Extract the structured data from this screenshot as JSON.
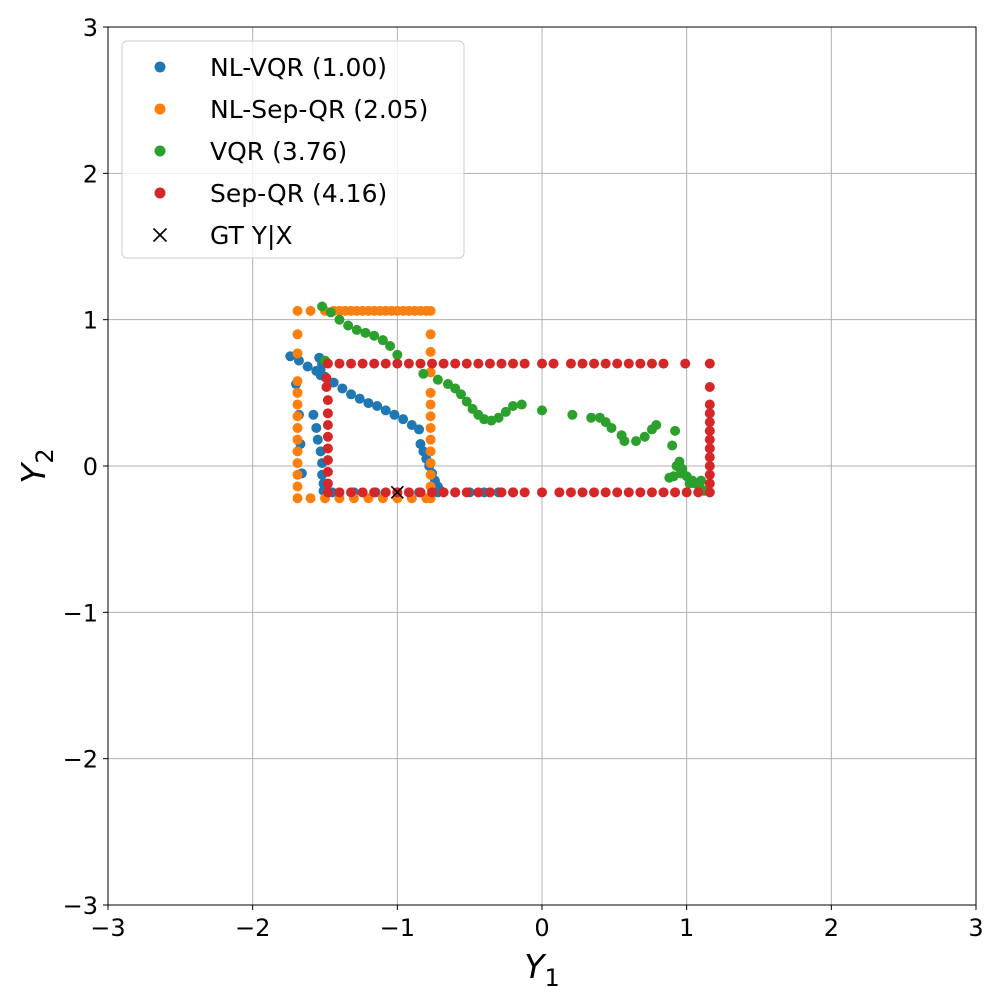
{
  "chart_data": {
    "type": "scatter",
    "xlabel": {
      "main": "Y",
      "sub": "1"
    },
    "ylabel": {
      "main": "Y",
      "sub": "2"
    },
    "xlim": [
      -3,
      3
    ],
    "ylim": [
      -3,
      3
    ],
    "xticks": [
      -3,
      -2,
      -1,
      0,
      1,
      2,
      3
    ],
    "yticks": [
      -3,
      -2,
      -1,
      0,
      1,
      2,
      3
    ],
    "xtick_labels": [
      "−3",
      "−2",
      "−1",
      "0",
      "1",
      "2",
      "3"
    ],
    "ytick_labels": [
      "−3",
      "−2",
      "−1",
      "0",
      "1",
      "2",
      "3"
    ],
    "grid": true,
    "legend_position": "top-left",
    "series": [
      {
        "name": "NL-VQR (1.00)",
        "color": "#1f77b4",
        "marker": "circle",
        "points": [
          [
            -1.74,
            0.75
          ],
          [
            -1.68,
            0.72
          ],
          [
            -1.62,
            0.68
          ],
          [
            -1.56,
            0.65
          ],
          [
            -1.5,
            0.61
          ],
          [
            -1.44,
            0.57
          ],
          [
            -1.38,
            0.53
          ],
          [
            -1.32,
            0.49
          ],
          [
            -1.26,
            0.46
          ],
          [
            -1.2,
            0.43
          ],
          [
            -1.14,
            0.41
          ],
          [
            -1.08,
            0.38
          ],
          [
            -1.02,
            0.35
          ],
          [
            -0.96,
            0.32
          ],
          [
            -0.9,
            0.28
          ],
          [
            -0.85,
            0.25
          ],
          [
            -1.54,
            0.74
          ],
          [
            -1.52,
            0.7
          ],
          [
            -1.53,
            0.66
          ],
          [
            -1.53,
            0.62
          ],
          [
            -1.7,
            0.56
          ],
          [
            -1.68,
            0.35
          ],
          [
            -1.67,
            0.15
          ],
          [
            -1.66,
            -0.05
          ],
          [
            -1.58,
            0.35
          ],
          [
            -1.56,
            0.26
          ],
          [
            -1.55,
            0.18
          ],
          [
            -1.53,
            0.1
          ],
          [
            -1.52,
            0.02
          ],
          [
            -1.52,
            -0.06
          ],
          [
            -1.51,
            -0.12
          ],
          [
            -1.51,
            -0.17
          ],
          [
            -1.45,
            -0.18
          ],
          [
            -1.3,
            -0.18
          ],
          [
            -1.15,
            -0.18
          ],
          [
            -1.0,
            -0.18
          ],
          [
            -0.85,
            -0.18
          ],
          [
            -0.72,
            -0.18
          ],
          [
            -0.6,
            -0.18
          ],
          [
            -0.5,
            -0.18
          ],
          [
            -0.4,
            -0.18
          ],
          [
            -0.3,
            -0.18
          ],
          [
            -0.2,
            -0.18
          ],
          [
            -0.84,
            0.15
          ],
          [
            -0.82,
            0.1
          ],
          [
            -0.8,
            0.05
          ],
          [
            -0.78,
            0.0
          ],
          [
            -0.76,
            -0.05
          ],
          [
            -0.74,
            -0.1
          ],
          [
            -0.72,
            -0.14
          ],
          [
            -0.7,
            -0.17
          ]
        ]
      },
      {
        "name": "NL-Sep-QR (2.05)",
        "color": "#ff7f0e",
        "marker": "circle",
        "points": [
          [
            -1.69,
            1.06
          ],
          [
            -1.6,
            1.06
          ],
          [
            -1.5,
            1.06
          ],
          [
            -1.44,
            1.06
          ],
          [
            -1.4,
            1.06
          ],
          [
            -1.36,
            1.06
          ],
          [
            -1.32,
            1.06
          ],
          [
            -1.28,
            1.06
          ],
          [
            -1.24,
            1.06
          ],
          [
            -1.2,
            1.06
          ],
          [
            -1.16,
            1.06
          ],
          [
            -1.12,
            1.06
          ],
          [
            -1.08,
            1.06
          ],
          [
            -1.04,
            1.06
          ],
          [
            -1.0,
            1.06
          ],
          [
            -0.96,
            1.06
          ],
          [
            -0.92,
            1.06
          ],
          [
            -0.88,
            1.06
          ],
          [
            -0.84,
            1.06
          ],
          [
            -0.8,
            1.06
          ],
          [
            -0.77,
            1.06
          ],
          [
            -1.69,
            0.9
          ],
          [
            -1.69,
            0.77
          ],
          [
            -1.69,
            0.58
          ],
          [
            -1.69,
            0.5
          ],
          [
            -1.69,
            0.42
          ],
          [
            -1.69,
            0.34
          ],
          [
            -1.69,
            0.26
          ],
          [
            -1.69,
            0.18
          ],
          [
            -1.69,
            0.1
          ],
          [
            -1.69,
            0.02
          ],
          [
            -1.69,
            -0.06
          ],
          [
            -1.69,
            -0.14
          ],
          [
            -1.69,
            -0.22
          ],
          [
            -0.77,
            0.9
          ],
          [
            -0.77,
            0.78
          ],
          [
            -0.77,
            0.64
          ],
          [
            -0.77,
            0.5
          ],
          [
            -0.77,
            0.42
          ],
          [
            -0.77,
            0.34
          ],
          [
            -0.77,
            0.26
          ],
          [
            -0.77,
            0.18
          ],
          [
            -0.77,
            0.1
          ],
          [
            -0.77,
            0.02
          ],
          [
            -0.77,
            -0.06
          ],
          [
            -0.77,
            -0.14
          ],
          [
            -0.77,
            -0.22
          ],
          [
            -1.6,
            -0.22
          ],
          [
            -1.5,
            -0.22
          ],
          [
            -1.4,
            -0.22
          ],
          [
            -1.3,
            -0.22
          ],
          [
            -1.2,
            -0.22
          ],
          [
            -1.1,
            -0.22
          ],
          [
            -1.0,
            -0.22
          ],
          [
            -0.9,
            -0.22
          ],
          [
            -0.8,
            -0.22
          ]
        ]
      },
      {
        "name": "VQR (3.76)",
        "color": "#2ca02c",
        "marker": "circle",
        "points": [
          [
            -1.52,
            1.09
          ],
          [
            -1.46,
            1.05
          ],
          [
            -1.4,
            1.0
          ],
          [
            -1.34,
            0.96
          ],
          [
            -1.28,
            0.93
          ],
          [
            -1.22,
            0.91
          ],
          [
            -1.16,
            0.89
          ],
          [
            -1.1,
            0.86
          ],
          [
            -1.05,
            0.82
          ],
          [
            -1.0,
            0.76
          ],
          [
            -1.5,
            0.72
          ],
          [
            -0.82,
            0.63
          ],
          [
            -0.72,
            0.59
          ],
          [
            -0.65,
            0.56
          ],
          [
            -0.6,
            0.53
          ],
          [
            -0.56,
            0.49
          ],
          [
            -0.52,
            0.44
          ],
          [
            -0.48,
            0.39
          ],
          [
            -0.44,
            0.35
          ],
          [
            -0.4,
            0.32
          ],
          [
            -0.35,
            0.31
          ],
          [
            -0.3,
            0.33
          ],
          [
            -0.25,
            0.37
          ],
          [
            -0.2,
            0.41
          ],
          [
            -0.14,
            0.42
          ],
          [
            0.0,
            0.38
          ],
          [
            0.21,
            0.35
          ],
          [
            0.34,
            0.33
          ],
          [
            0.4,
            0.33
          ],
          [
            0.44,
            0.3
          ],
          [
            0.48,
            0.26
          ],
          [
            0.55,
            0.21
          ],
          [
            0.57,
            0.17
          ],
          [
            0.65,
            0.17
          ],
          [
            0.71,
            0.2
          ],
          [
            0.76,
            0.25
          ],
          [
            0.79,
            0.28
          ],
          [
            0.92,
            0.24
          ],
          [
            0.9,
            0.14
          ],
          [
            0.95,
            0.03
          ],
          [
            0.97,
            -0.02
          ],
          [
            1.0,
            -0.07
          ],
          [
            1.04,
            -0.1
          ],
          [
            1.06,
            -0.12
          ],
          [
            1.09,
            -0.14
          ],
          [
            1.12,
            -0.17
          ],
          [
            0.93,
            0.0
          ],
          [
            0.96,
            -0.05
          ],
          [
            1.02,
            -0.12
          ],
          [
            0.91,
            -0.07
          ],
          [
            0.88,
            -0.08
          ],
          [
            1.1,
            -0.1
          ]
        ]
      },
      {
        "name": "Sep-QR (4.16)",
        "color": "#d62728",
        "marker": "circle",
        "points": [
          [
            -1.48,
            0.7
          ],
          [
            -1.4,
            0.7
          ],
          [
            -1.32,
            0.7
          ],
          [
            -1.24,
            0.7
          ],
          [
            -1.16,
            0.7
          ],
          [
            -1.08,
            0.7
          ],
          [
            -1.0,
            0.7
          ],
          [
            -0.92,
            0.7
          ],
          [
            -0.84,
            0.7
          ],
          [
            -0.76,
            0.7
          ],
          [
            -0.68,
            0.7
          ],
          [
            -0.6,
            0.7
          ],
          [
            -0.52,
            0.7
          ],
          [
            -0.44,
            0.7
          ],
          [
            -0.36,
            0.7
          ],
          [
            -0.28,
            0.7
          ],
          [
            -0.2,
            0.7
          ],
          [
            -0.12,
            0.7
          ],
          [
            0.0,
            0.7
          ],
          [
            0.08,
            0.7
          ],
          [
            0.2,
            0.7
          ],
          [
            0.28,
            0.7
          ],
          [
            0.36,
            0.7
          ],
          [
            0.44,
            0.7
          ],
          [
            0.52,
            0.7
          ],
          [
            0.6,
            0.7
          ],
          [
            0.68,
            0.7
          ],
          [
            0.76,
            0.7
          ],
          [
            0.84,
            0.7
          ],
          [
            0.99,
            0.7
          ],
          [
            1.16,
            0.7
          ],
          [
            -1.48,
            -0.18
          ],
          [
            -1.4,
            -0.18
          ],
          [
            -1.32,
            -0.18
          ],
          [
            -1.24,
            -0.18
          ],
          [
            -1.16,
            -0.18
          ],
          [
            -1.08,
            -0.18
          ],
          [
            -1.0,
            -0.18
          ],
          [
            -0.92,
            -0.18
          ],
          [
            -0.84,
            -0.18
          ],
          [
            -0.76,
            -0.18
          ],
          [
            -0.68,
            -0.18
          ],
          [
            -0.6,
            -0.18
          ],
          [
            -0.52,
            -0.18
          ],
          [
            -0.44,
            -0.18
          ],
          [
            -0.36,
            -0.18
          ],
          [
            -0.28,
            -0.18
          ],
          [
            -0.2,
            -0.18
          ],
          [
            -0.12,
            -0.18
          ],
          [
            0.0,
            -0.18
          ],
          [
            0.12,
            -0.18
          ],
          [
            0.2,
            -0.18
          ],
          [
            0.28,
            -0.18
          ],
          [
            0.36,
            -0.18
          ],
          [
            0.44,
            -0.18
          ],
          [
            0.52,
            -0.18
          ],
          [
            0.6,
            -0.18
          ],
          [
            0.68,
            -0.18
          ],
          [
            0.76,
            -0.18
          ],
          [
            0.84,
            -0.18
          ],
          [
            0.92,
            -0.18
          ],
          [
            1.0,
            -0.18
          ],
          [
            1.08,
            -0.18
          ],
          [
            1.16,
            -0.18
          ],
          [
            -1.49,
            0.6
          ],
          [
            -1.49,
            0.54
          ],
          [
            -1.48,
            0.45
          ],
          [
            -1.48,
            0.36
          ],
          [
            -1.48,
            0.28
          ],
          [
            -1.48,
            0.2
          ],
          [
            -1.48,
            0.12
          ],
          [
            -1.48,
            0.04
          ],
          [
            -1.48,
            -0.04
          ],
          [
            -1.48,
            -0.12
          ],
          [
            1.16,
            0.54
          ],
          [
            1.16,
            0.42
          ],
          [
            1.16,
            0.36
          ],
          [
            1.16,
            0.3
          ],
          [
            1.16,
            0.24
          ],
          [
            1.16,
            0.18
          ],
          [
            1.16,
            0.12
          ],
          [
            1.16,
            0.06
          ],
          [
            1.16,
            0.0
          ],
          [
            1.16,
            -0.06
          ],
          [
            1.16,
            -0.12
          ]
        ]
      },
      {
        "name": "GT Y|X",
        "color": "#000000",
        "marker": "x",
        "points": [
          [
            -1.0,
            -0.18
          ]
        ]
      }
    ]
  }
}
